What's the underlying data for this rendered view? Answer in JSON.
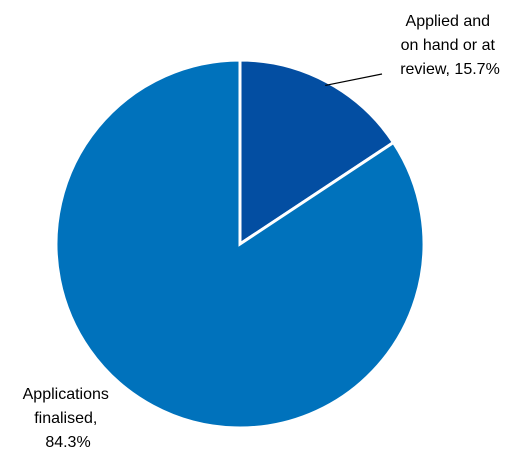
{
  "chart_data": {
    "type": "pie",
    "title": "",
    "categories": [
      "Applied and on hand or at review",
      "Applications finalised"
    ],
    "values": [
      15.7,
      84.3
    ],
    "unit": "%",
    "start_angle_deg": 0,
    "direction": "clockwise",
    "colors": [
      "#034ea2",
      "#0072bc"
    ],
    "slice_border_color": "#ffffff",
    "labels": [
      {
        "lines": [
          "Applied and",
          "on hand or at",
          "review, 15.7%"
        ],
        "leader_line": true
      },
      {
        "lines": [
          "Applications",
          "finalised,",
          "84.3%"
        ],
        "leader_line": false
      }
    ],
    "legend": "none"
  }
}
